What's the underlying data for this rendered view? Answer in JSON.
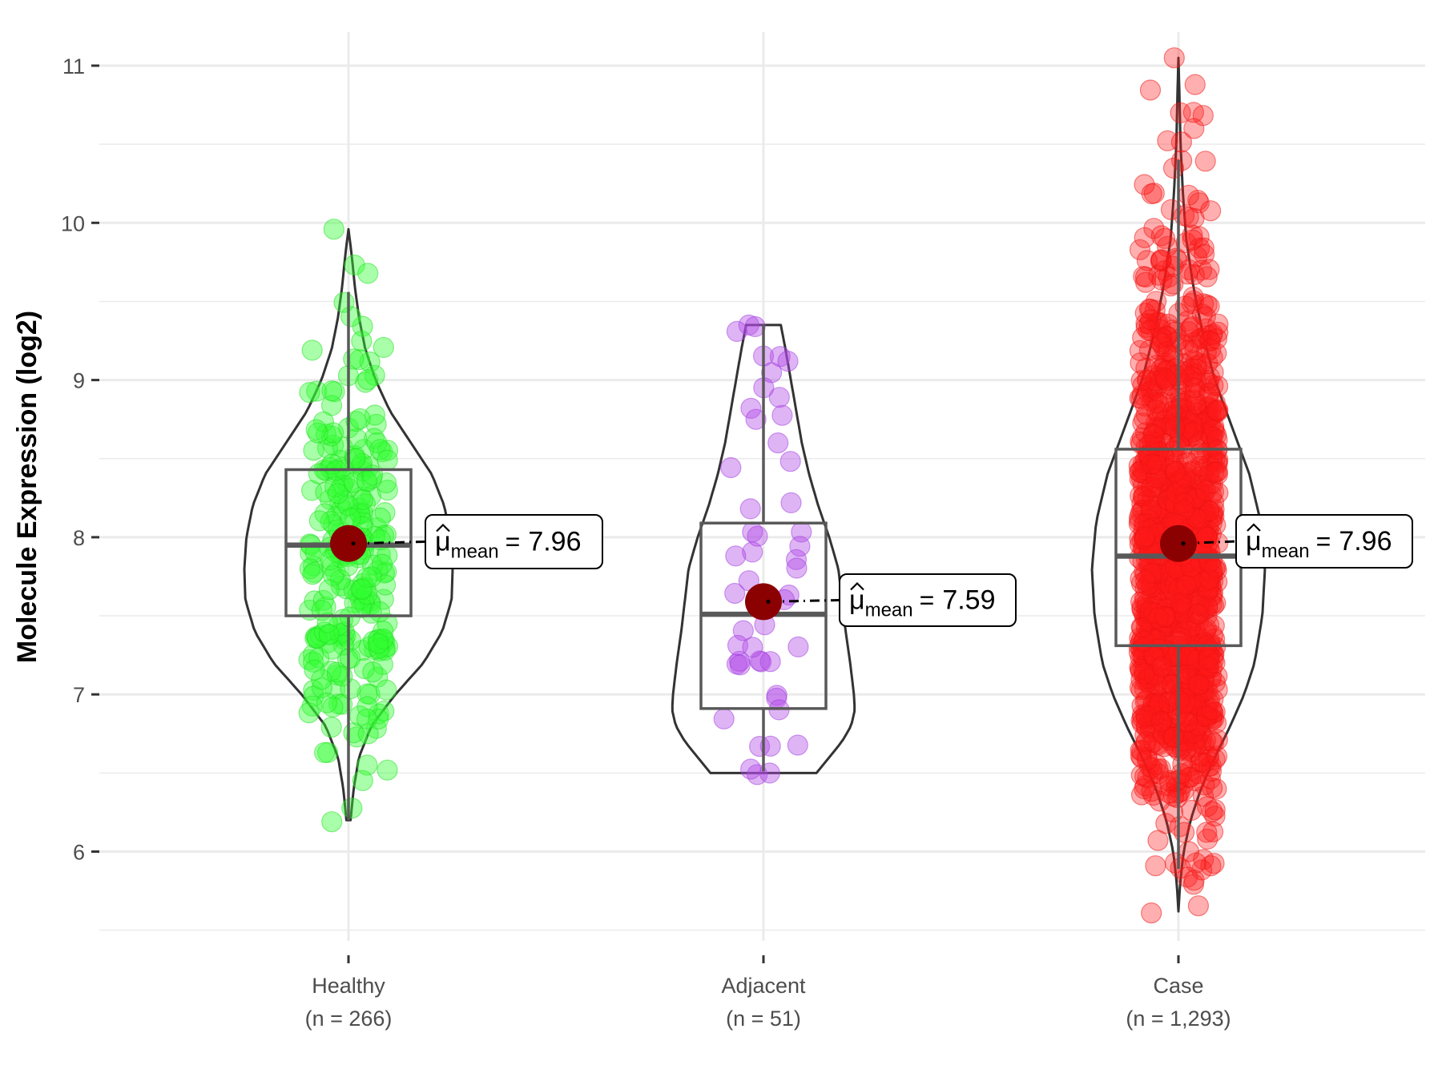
{
  "chart_data": {
    "type": "violin",
    "title": "",
    "xlabel": "",
    "ylabel": "Molecule Expression (log2)",
    "ylim": [
      5.5,
      11.1
    ],
    "yticks": [
      6,
      7,
      8,
      9,
      10,
      11
    ],
    "y_minor_ticks": [
      5.5,
      6.5,
      7.5,
      8.5,
      9.5,
      10.5
    ],
    "grid": true,
    "legend": "none",
    "categories": [
      "Healthy",
      "Adjacent",
      "Case"
    ],
    "category_labels": [
      "(n = 266)",
      "(n = 51)",
      "(n = 1,293)"
    ],
    "mean_label_prefix": "μ",
    "mean_label_subscript": "mean",
    "mean_label_equals": "=",
    "series": [
      {
        "name": "Healthy",
        "n": 266,
        "color": "#33ff33",
        "stroke": "#22dd22",
        "min": 6.19,
        "max": 9.96,
        "whisker_low": 6.2,
        "whisker_high": 9.56,
        "q1": 7.5,
        "median": 7.95,
        "q3": 8.43,
        "mean": 7.96,
        "mean_text": "7.96",
        "violin_profile": [
          [
            6.2,
            0.02
          ],
          [
            6.4,
            0.05
          ],
          [
            6.6,
            0.1
          ],
          [
            6.8,
            0.22
          ],
          [
            7.0,
            0.45
          ],
          [
            7.2,
            0.72
          ],
          [
            7.4,
            0.9
          ],
          [
            7.6,
            0.99
          ],
          [
            7.8,
            1.0
          ],
          [
            8.0,
            0.98
          ],
          [
            8.2,
            0.92
          ],
          [
            8.4,
            0.8
          ],
          [
            8.6,
            0.6
          ],
          [
            8.8,
            0.4
          ],
          [
            9.0,
            0.26
          ],
          [
            9.2,
            0.16
          ],
          [
            9.4,
            0.1
          ],
          [
            9.6,
            0.06
          ],
          [
            9.8,
            0.03
          ],
          [
            9.96,
            0.0
          ]
        ],
        "extreme_points": [
          [
            9.96,
            -0.35
          ],
          [
            6.19,
            -0.4
          ],
          [
            6.55,
            0.45
          ],
          [
            6.63,
            -0.5
          ]
        ]
      },
      {
        "name": "Adjacent",
        "n": 51,
        "color": "#b34de6",
        "stroke": "#a040dd",
        "min": 6.49,
        "max": 9.35,
        "whisker_low": 6.51,
        "whisker_high": 9.35,
        "q1": 6.91,
        "median": 7.51,
        "q3": 8.09,
        "mean": 7.59,
        "mean_text": "7.59",
        "violin_profile": [
          [
            6.5,
            0.58
          ],
          [
            6.6,
            0.72
          ],
          [
            6.7,
            0.86
          ],
          [
            6.8,
            0.96
          ],
          [
            6.9,
            1.0
          ],
          [
            7.0,
            0.99
          ],
          [
            7.2,
            0.95
          ],
          [
            7.4,
            0.9
          ],
          [
            7.6,
            0.86
          ],
          [
            7.8,
            0.82
          ],
          [
            8.0,
            0.72
          ],
          [
            8.2,
            0.6
          ],
          [
            8.4,
            0.5
          ],
          [
            8.6,
            0.42
          ],
          [
            8.8,
            0.36
          ],
          [
            9.0,
            0.3
          ],
          [
            9.2,
            0.24
          ],
          [
            9.35,
            0.19
          ]
        ],
        "extreme_points": [
          [
            9.35,
            -0.35
          ],
          [
            9.34,
            -0.2
          ],
          [
            9.15,
            0.4
          ],
          [
            8.89,
            0.38
          ],
          [
            8.82,
            -0.3
          ],
          [
            8.75,
            -0.18
          ],
          [
            8.6,
            0.35
          ],
          [
            6.49,
            -0.15
          ],
          [
            6.5,
            0.15
          ]
        ]
      },
      {
        "name": "Case",
        "n": 1293,
        "color": "#ff1a1a",
        "stroke": "#ee1111",
        "min": 5.61,
        "max": 11.05,
        "whisker_low": 5.89,
        "whisker_high": 10.4,
        "q1": 7.31,
        "median": 7.88,
        "q3": 8.56,
        "mean": 7.96,
        "mean_text": "7.96",
        "violin_profile": [
          [
            5.62,
            0.0
          ],
          [
            5.8,
            0.02
          ],
          [
            6.0,
            0.06
          ],
          [
            6.2,
            0.14
          ],
          [
            6.4,
            0.26
          ],
          [
            6.6,
            0.42
          ],
          [
            6.8,
            0.6
          ],
          [
            7.0,
            0.76
          ],
          [
            7.2,
            0.88
          ],
          [
            7.5,
            0.97
          ],
          [
            7.8,
            1.0
          ],
          [
            8.1,
            0.95
          ],
          [
            8.4,
            0.82
          ],
          [
            8.7,
            0.62
          ],
          [
            9.0,
            0.42
          ],
          [
            9.3,
            0.28
          ],
          [
            9.6,
            0.17
          ],
          [
            9.9,
            0.09
          ],
          [
            10.2,
            0.05
          ],
          [
            10.5,
            0.025
          ],
          [
            10.8,
            0.012
          ],
          [
            11.05,
            0.0
          ]
        ],
        "extreme_points": [
          [
            11.05,
            -0.1
          ],
          [
            10.88,
            0.4
          ],
          [
            10.7,
            0.05
          ],
          [
            5.61,
            -0.65
          ],
          [
            5.91,
            -0.55
          ],
          [
            5.95,
            0.6
          ],
          [
            6.0,
            0.25
          ]
        ]
      }
    ]
  }
}
